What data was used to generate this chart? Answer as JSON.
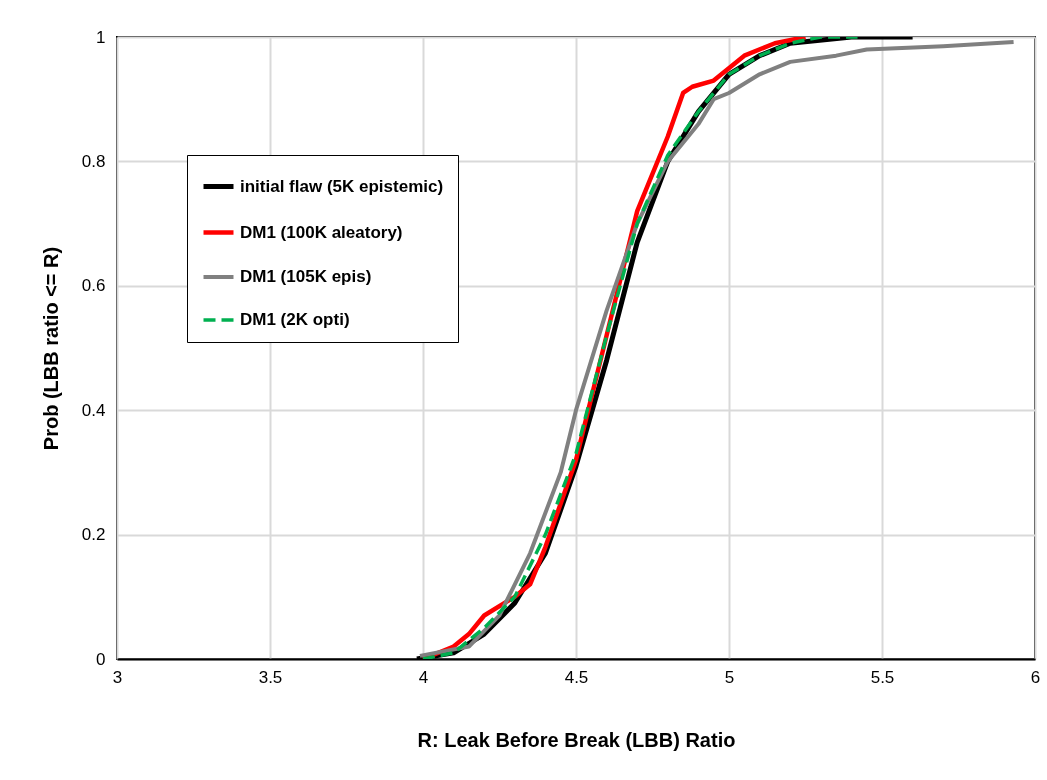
{
  "chart_data": {
    "type": "line",
    "xlabel": "R: Leak Before Break (LBB) Ratio",
    "ylabel": "Prob (LBB ratio <= R)",
    "xlim": [
      3,
      6
    ],
    "xticks": [
      3,
      3.5,
      4,
      4.5,
      5,
      5.5,
      6
    ],
    "ylim": [
      0,
      1
    ],
    "yticks": [
      0,
      0.2,
      0.4,
      0.6,
      0.8,
      1
    ],
    "grid": true,
    "legend": "top left",
    "marker": "none",
    "series": [
      {
        "name": "initial flaw (5K epistemic)",
        "color": "#000000",
        "line_style": "solid",
        "x": [
          3.98,
          4.1,
          4.2,
          4.3,
          4.4,
          4.5,
          4.6,
          4.7,
          4.8,
          4.9,
          5.0,
          5.1,
          5.2,
          5.4,
          5.6
        ],
        "values": [
          0,
          0.01,
          0.04,
          0.09,
          0.17,
          0.31,
          0.48,
          0.67,
          0.8,
          0.88,
          0.94,
          0.97,
          0.99,
          1.0,
          1.0
        ]
      },
      {
        "name": "DM1 (100K aleatory)",
        "color": "#ff0000",
        "line_style": "solid",
        "x": [
          4.0,
          4.1,
          4.15,
          4.2,
          4.3,
          4.35,
          4.4,
          4.5,
          4.6,
          4.7,
          4.8,
          4.85,
          4.88,
          4.95,
          5.05,
          5.15,
          5.25
        ],
        "values": [
          0,
          0.02,
          0.04,
          0.07,
          0.1,
          0.12,
          0.18,
          0.32,
          0.52,
          0.72,
          0.84,
          0.91,
          0.92,
          0.93,
          0.97,
          0.99,
          1.0
        ]
      },
      {
        "name": "DM1 (105K epis)",
        "color": "#808080",
        "line_style": "solid",
        "x": [
          3.99,
          4.15,
          4.25,
          4.35,
          4.45,
          4.5,
          4.6,
          4.7,
          4.8,
          4.9,
          4.95,
          5.0,
          5.1,
          5.2,
          5.35,
          5.45,
          5.7,
          5.93
        ],
        "values": [
          0.005,
          0.02,
          0.07,
          0.17,
          0.3,
          0.4,
          0.56,
          0.7,
          0.8,
          0.86,
          0.9,
          0.91,
          0.94,
          0.96,
          0.97,
          0.98,
          0.985,
          0.992
        ]
      },
      {
        "name": "DM1 (2K opti)",
        "color": "#00b050",
        "line_style": "dashed",
        "x": [
          4.0,
          4.1,
          4.2,
          4.3,
          4.4,
          4.5,
          4.6,
          4.7,
          4.8,
          4.9,
          5.0,
          5.1,
          5.2,
          5.3,
          5.42
        ],
        "values": [
          0,
          0.01,
          0.05,
          0.1,
          0.2,
          0.33,
          0.52,
          0.7,
          0.81,
          0.88,
          0.94,
          0.97,
          0.99,
          1.0,
          1.0
        ]
      }
    ]
  }
}
